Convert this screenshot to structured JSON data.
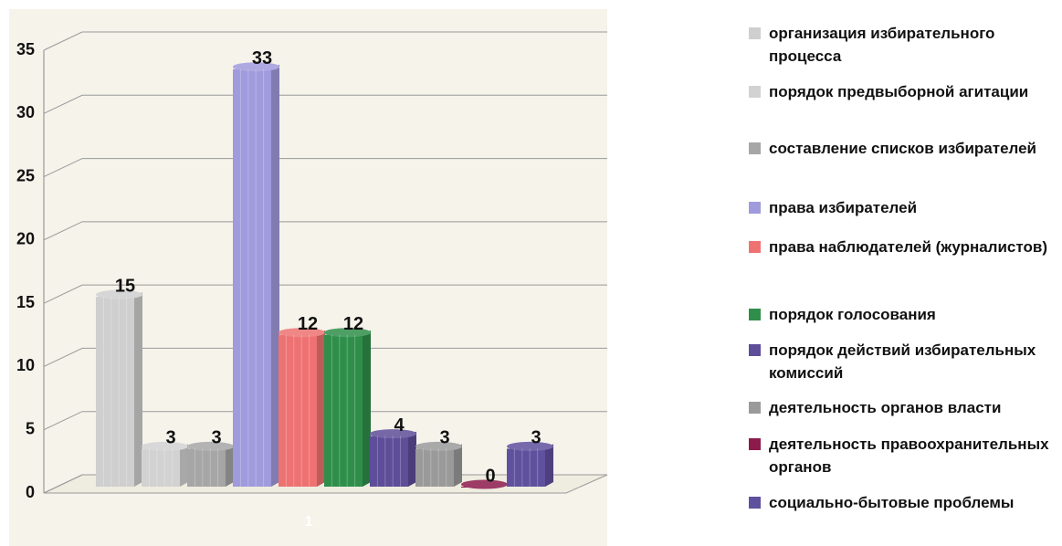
{
  "chart_data": {
    "type": "bar",
    "categories": [
      "1"
    ],
    "series": [
      {
        "name": "организация избирательного процесса",
        "color": "#cfcfcf",
        "values": [
          15
        ]
      },
      {
        "name": "порядок предвыборной агитации",
        "color": "#d2d2d2",
        "values": [
          3
        ]
      },
      {
        "name": "составление списков избирателей",
        "color": "#a6a6a6",
        "values": [
          3
        ]
      },
      {
        "name": "права избирателей",
        "color": "#a09bdc",
        "values": [
          33
        ]
      },
      {
        "name": "права наблюдателей (журналистов)",
        "color": "#ee7272",
        "values": [
          12
        ]
      },
      {
        "name": "порядок голосования",
        "color": "#2f8f4a",
        "values": [
          12
        ]
      },
      {
        "name": "порядок действий избирательных комиссий",
        "color": "#5e4d98",
        "values": [
          4
        ]
      },
      {
        "name": "деятельность органов власти",
        "color": "#9a9a9a",
        "values": [
          3
        ]
      },
      {
        "name": "деятельность правоохранительных органов",
        "color": "#8c1b4c",
        "values": [
          0
        ]
      },
      {
        "name": "социально-бытовые проблемы",
        "color": "#5f519e",
        "values": [
          3
        ]
      }
    ],
    "ylim": [
      0,
      35
    ],
    "yticks": [
      0,
      5,
      10,
      15,
      20,
      25,
      30,
      35
    ],
    "grid": true,
    "legend": "right"
  }
}
